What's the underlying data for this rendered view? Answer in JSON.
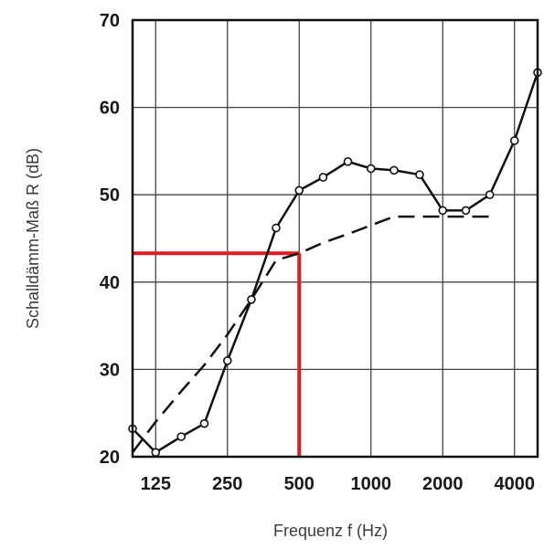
{
  "chart_data": {
    "type": "line",
    "title": "",
    "xlabel": "Frequenz f (Hz)",
    "ylabel": "Schalldämm-Maß R (dB)",
    "x_scale": "log",
    "x_tick_values": [
      125,
      250,
      500,
      1000,
      2000,
      4000
    ],
    "x_tick_labels": [
      "125",
      "250",
      "500",
      "1000",
      "2000",
      "4000"
    ],
    "xlim": [
      100,
      5000
    ],
    "ylim": [
      20,
      70
    ],
    "y_ticks": [
      20,
      30,
      40,
      50,
      60,
      70
    ],
    "grid": true,
    "series": [
      {
        "style": "solid-with-circle-markers",
        "color": "#111111",
        "x": [
          100,
          125,
          160,
          200,
          250,
          315,
          400,
          500,
          630,
          800,
          1000,
          1250,
          1600,
          2000,
          2500,
          3150,
          4000,
          5000
        ],
        "y": [
          23.2,
          20.5,
          22.3,
          23.8,
          31,
          38,
          46.2,
          50.5,
          52,
          53.8,
          53,
          52.8,
          52.3,
          48.2,
          48.2,
          50,
          56.2,
          64
        ]
      },
      {
        "style": "dashed",
        "color": "#111111",
        "x": [
          100,
          125,
          160,
          200,
          250,
          315,
          400,
          500,
          630,
          800,
          1000,
          1250,
          1600,
          2000,
          2500,
          3150
        ],
        "y": [
          20.5,
          24,
          27.5,
          30.5,
          34,
          38,
          42.5,
          43.3,
          44.5,
          45.5,
          46.5,
          47.5,
          47.5,
          47.5,
          47.5,
          47.5
        ]
      }
    ],
    "annotations": {
      "highlight": {
        "color": "#e11b22",
        "x": 500,
        "y": 43.3
      }
    }
  }
}
